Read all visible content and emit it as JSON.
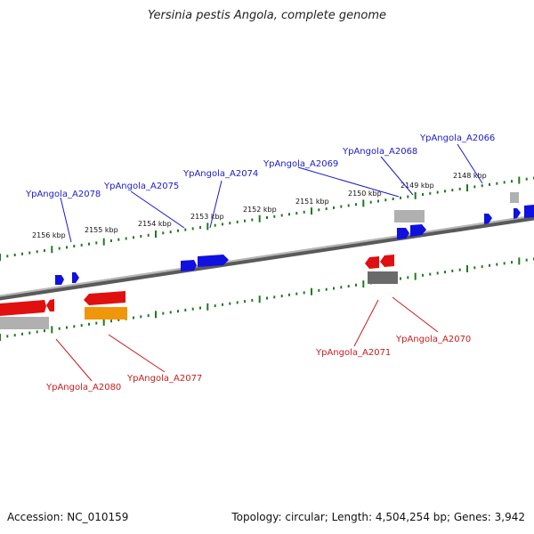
{
  "title": "Yersinia pestis Angola, complete genome",
  "footer": {
    "accession": "Accession: NC_010159",
    "summary": "Topology: circular; Length: 4,504,254 bp; Genes: 3,942"
  },
  "colors": {
    "backbone": "#8a8a8a",
    "tick": "#1f7a1f",
    "forward_gene": "#1010e0",
    "reverse_gene": "#e01010",
    "label_forward": "#1a1acc",
    "label_reverse": "#cc1a1a",
    "grey_feature": "#b0b0b0",
    "dark_feature": "#6a6a6a",
    "orange_feature": "#f0960a"
  },
  "kbp_labels": [
    "2156 kbp",
    "2155 kbp",
    "2154 kbp",
    "2153 kbp",
    "2152 kbp",
    "2151 kbp",
    "2150 kbp",
    "2149 kbp",
    "2148 kbp"
  ],
  "gene_labels": {
    "top": [
      "YpAngola_A2078",
      "YpAngola_A2075",
      "YpAngola_A2074",
      "YpAngola_A2069",
      "YpAngola_A2068",
      "YpAngola_A2066"
    ],
    "bottom": [
      "YpAngola_A2080",
      "YpAngola_A2077",
      "YpAngola_A2071",
      "YpAngola_A2070"
    ]
  }
}
